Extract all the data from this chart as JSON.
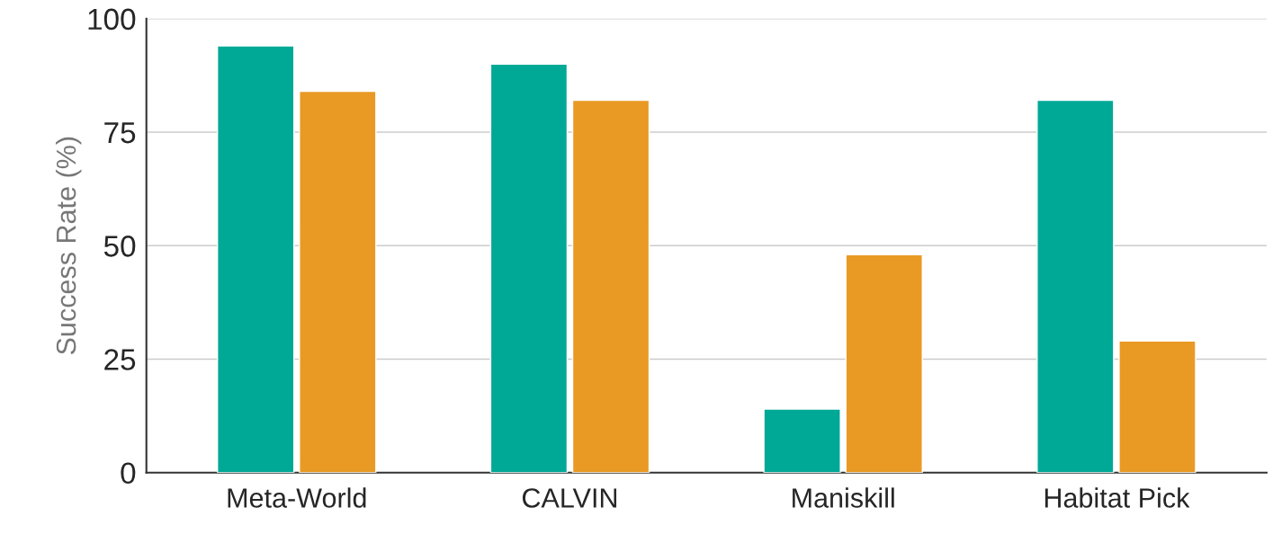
{
  "chart_data": {
    "type": "bar",
    "ylabel": "Success Rate (%)",
    "categories": [
      "Meta-World",
      "CALVIN",
      "Maniskill",
      "Habitat Pick"
    ],
    "series": [
      {
        "color": "#00a896",
        "values": [
          94,
          90,
          14,
          82
        ]
      },
      {
        "color": "#e89a24",
        "values": [
          84,
          82,
          48,
          29
        ]
      }
    ],
    "ylim": [
      0,
      100
    ],
    "yticks": [
      0,
      25,
      50,
      75,
      100
    ],
    "grid": "y"
  }
}
